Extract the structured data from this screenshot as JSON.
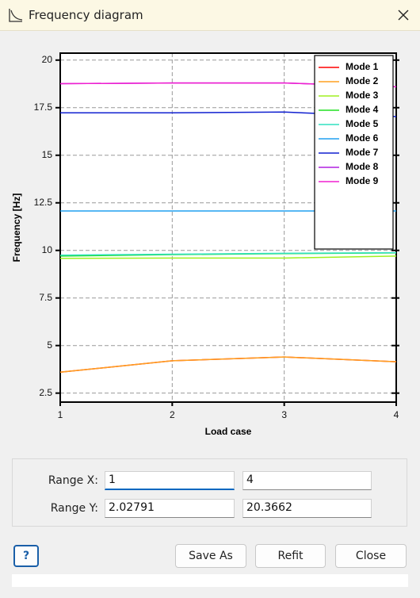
{
  "window": {
    "title": "Frequency diagram"
  },
  "chart_data": {
    "type": "line",
    "xlabel": "Load case",
    "ylabel": "Frequency [Hz]",
    "x": [
      1,
      2,
      3,
      4
    ],
    "xlim": [
      1,
      4
    ],
    "xticks": [
      1,
      2,
      3,
      4
    ],
    "ylim": [
      2.02791,
      20.3662
    ],
    "yticks": [
      2.5,
      5,
      7.5,
      10,
      12.5,
      15,
      17.5,
      20
    ],
    "grid": true,
    "legend": "upper right",
    "series": [
      {
        "name": "Mode 1",
        "color": "#ff0000",
        "values": [
          3.6,
          4.2,
          4.4,
          4.15
        ]
      },
      {
        "name": "Mode 2",
        "color": "#ffa020",
        "values": [
          3.6,
          4.2,
          4.4,
          4.15
        ]
      },
      {
        "name": "Mode 3",
        "color": "#a0f020",
        "values": [
          9.58,
          9.6,
          9.6,
          9.7
        ]
      },
      {
        "name": "Mode 4",
        "color": "#20e020",
        "values": [
          9.7,
          9.78,
          9.83,
          9.87
        ]
      },
      {
        "name": "Mode 5",
        "color": "#30e0c0",
        "values": [
          9.75,
          9.8,
          9.85,
          9.88
        ]
      },
      {
        "name": "Mode 6",
        "color": "#20a0f0",
        "values": [
          12.07,
          12.07,
          12.07,
          12.07
        ]
      },
      {
        "name": "Mode 7",
        "color": "#1020d0",
        "values": [
          17.23,
          17.23,
          17.27,
          17.03
        ]
      },
      {
        "name": "Mode 8",
        "color": "#b020e0",
        "values": [
          18.76,
          18.8,
          18.8,
          18.6
        ]
      },
      {
        "name": "Mode 9",
        "color": "#f020d0",
        "values": [
          18.76,
          18.8,
          18.8,
          18.6
        ]
      }
    ]
  },
  "form": {
    "range_x_label": "Range X:",
    "range_y_label": "Range Y:",
    "range_x": [
      "1",
      "4"
    ],
    "range_y": [
      "2.02791",
      "20.3662"
    ]
  },
  "buttons": {
    "help": "?",
    "save_as": "Save As",
    "refit": "Refit",
    "close": "Close"
  }
}
